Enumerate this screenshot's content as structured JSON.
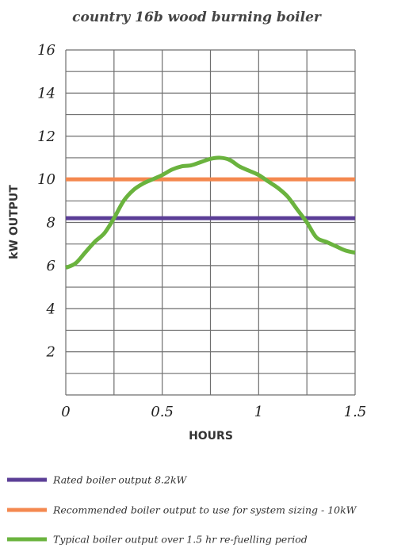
{
  "chart_data": {
    "type": "line",
    "title": "country 16b wood burning boiler",
    "xlabel": "HOURS",
    "ylabel": "kW OUTPUT",
    "xlim": [
      0,
      1.5
    ],
    "ylim": [
      0,
      16
    ],
    "x_ticks": [
      {
        "value": 0,
        "label": "0"
      },
      {
        "value": 0.5,
        "label": "0.5"
      },
      {
        "value": 1,
        "label": "1"
      },
      {
        "value": 1.5,
        "label": "1.5"
      }
    ],
    "y_ticks": [
      {
        "value": 2,
        "label": "2"
      },
      {
        "value": 4,
        "label": "4"
      },
      {
        "value": 6,
        "label": "6"
      },
      {
        "value": 8,
        "label": "8"
      },
      {
        "value": 10,
        "label": "10"
      },
      {
        "value": 12,
        "label": "12"
      },
      {
        "value": 14,
        "label": "14"
      },
      {
        "value": 16,
        "label": "16"
      }
    ],
    "grid": true,
    "legend_placement": "bottom",
    "series": [
      {
        "name": "Rated boiler output 8.2kW",
        "color": "#5b3e96",
        "x": [
          0,
          1.5
        ],
        "y": [
          8.2,
          8.2
        ]
      },
      {
        "name": "Recommended boiler output to use for system sizing - 10kW",
        "color": "#f4884f",
        "x": [
          0,
          1.5
        ],
        "y": [
          10,
          10
        ]
      },
      {
        "name": "Typical boiler output over 1.5 hr re-fuelling period",
        "color": "#6ab33e",
        "x": [
          0,
          0.05,
          0.1,
          0.15,
          0.2,
          0.25,
          0.3,
          0.35,
          0.4,
          0.45,
          0.5,
          0.55,
          0.6,
          0.65,
          0.7,
          0.75,
          0.8,
          0.85,
          0.9,
          0.95,
          1.0,
          1.05,
          1.1,
          1.15,
          1.2,
          1.25,
          1.3,
          1.35,
          1.4,
          1.45,
          1.5
        ],
        "y": [
          5.9,
          6.1,
          6.6,
          7.1,
          7.5,
          8.2,
          9.0,
          9.5,
          9.8,
          10.0,
          10.2,
          10.45,
          10.6,
          10.65,
          10.8,
          10.95,
          11.0,
          10.9,
          10.6,
          10.4,
          10.2,
          9.9,
          9.6,
          9.2,
          8.6,
          8.0,
          7.3,
          7.1,
          6.9,
          6.7,
          6.6
        ]
      }
    ]
  }
}
